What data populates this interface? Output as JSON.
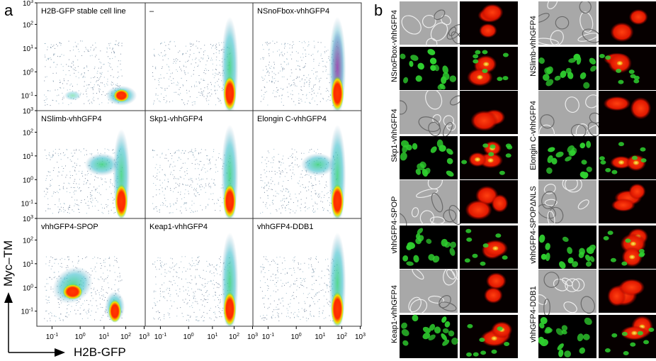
{
  "panel_a": {
    "letter": "a",
    "y_axis_label": "Myc–TM",
    "x_axis_label": "H2B-GFP",
    "y_ticks": [
      "10^-1",
      "10^0",
      "10^1",
      "10^2",
      "10^3"
    ],
    "x_ticks": [
      "10^-1",
      "10^0",
      "10^1",
      "10^2",
      "10^3"
    ],
    "plots": [
      {
        "label": "H2B-GFP stable cell line"
      },
      {
        "label": "–"
      },
      {
        "label": "NSnoFbox-vhhGFP4"
      },
      {
        "label": "NSlimb-vhhGFP4"
      },
      {
        "label": "Skp1-vhhGFP4"
      },
      {
        "label": "Elongin C-vhhGFP4"
      },
      {
        "label": "vhhGFP4-SPOP"
      },
      {
        "label": "Keap1-vhhGFP4"
      },
      {
        "label": "vhhGFP4-DDB1"
      }
    ]
  },
  "panel_b": {
    "letter": "b",
    "conditions": [
      {
        "label": "NSnoFbox-vhhGFP4"
      },
      {
        "label": "NSlimb-vhhGFP4"
      },
      {
        "label": "Skp1-vhhGFP4"
      },
      {
        "label": "Elongin C-vhhGFP4"
      },
      {
        "label": "vhhGFP4-SPOP"
      },
      {
        "label": "vhhGFP4-SPOPΔNLS"
      },
      {
        "label": "Keap1-vhhGFP4"
      },
      {
        "label": "vhhGFP4-DDB1"
      }
    ]
  },
  "colors": {
    "brightfield": "#9a9a9a",
    "red": "#ff2a00",
    "green": "#2fd02f",
    "merge_yellow": "#f0e000",
    "density_low": "#5a6a80",
    "density_mid": "#22c4b0",
    "density_high": "#ff2200"
  }
}
